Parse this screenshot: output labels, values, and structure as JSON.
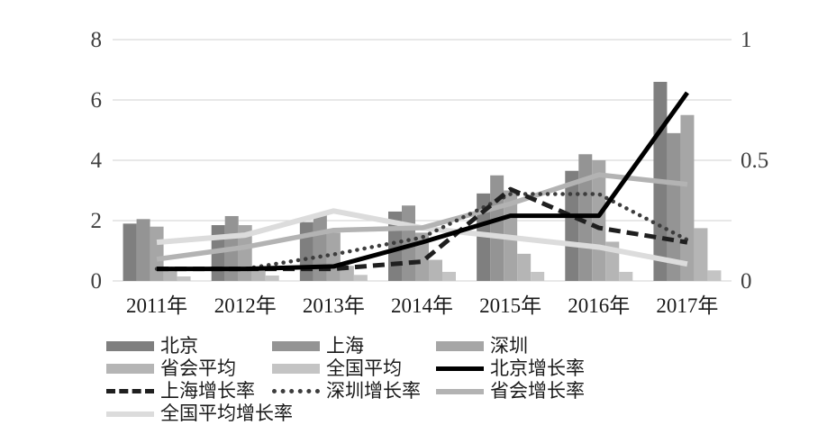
{
  "chart_data": {
    "type": "bar+line",
    "title": "",
    "categories": [
      "2011年",
      "2012年",
      "2013年",
      "2014年",
      "2015年",
      "2016年",
      "2017年"
    ],
    "bar_series": [
      {
        "name": "北京",
        "axis": "left",
        "color": "#7f7f7f",
        "values": [
          1.9,
          1.85,
          1.95,
          2.3,
          2.9,
          3.65,
          6.6
        ]
      },
      {
        "name": "上海",
        "axis": "left",
        "color": "#949494",
        "values": [
          2.05,
          2.15,
          2.2,
          2.5,
          3.5,
          4.2,
          4.9
        ]
      },
      {
        "name": "深圳",
        "axis": "left",
        "color": "#a6a6a6",
        "values": [
          1.8,
          1.85,
          1.6,
          1.6,
          3.0,
          4.0,
          5.5
        ]
      },
      {
        "name": "省会平均",
        "axis": "left",
        "color": "#b5b5b5",
        "values": [
          0.4,
          0.45,
          0.5,
          0.7,
          0.9,
          1.3,
          1.75
        ]
      },
      {
        "name": "全国平均",
        "axis": "left",
        "color": "#c4c4c4",
        "values": [
          0.15,
          0.18,
          0.2,
          0.3,
          0.3,
          0.3,
          0.35
        ]
      }
    ],
    "line_series": [
      {
        "name": "全国平均增长率",
        "axis": "right",
        "color": "#dcdcdc",
        "style": "solid",
        "values": [
          0.16,
          0.19,
          0.29,
          0.22,
          0.18,
          0.14,
          0.07
        ]
      },
      {
        "name": "省会增长率",
        "axis": "right",
        "color": "#b3b3b3",
        "style": "solid",
        "values": [
          0.09,
          0.14,
          0.21,
          0.22,
          0.32,
          0.44,
          0.4
        ]
      },
      {
        "name": "深圳增长率",
        "axis": "right",
        "color": "#3d3d3d",
        "style": "dotted",
        "values": [
          0.05,
          0.05,
          0.11,
          0.18,
          0.36,
          0.36,
          0.17
        ]
      },
      {
        "name": "上海增长率",
        "axis": "right",
        "color": "#1f1f1f",
        "style": "dashed",
        "values": [
          0.05,
          0.05,
          0.05,
          0.08,
          0.38,
          0.22,
          0.16
        ]
      },
      {
        "name": "北京增长率",
        "axis": "right",
        "color": "#000000",
        "style": "solid",
        "values": [
          0.05,
          0.05,
          0.06,
          0.16,
          0.27,
          0.27,
          0.78
        ]
      }
    ],
    "axis_left": {
      "ticks": [
        0,
        2,
        4,
        6,
        8
      ],
      "tick_labels": [
        "0",
        "2",
        "4",
        "6",
        "8"
      ],
      "max": 8
    },
    "axis_right": {
      "ticks": [
        0,
        0.5,
        1
      ],
      "tick_labels": [
        "0",
        "0.5",
        "1"
      ],
      "max": 1
    },
    "grid": true,
    "legend_position": "bottom"
  },
  "legend": {
    "items": [
      {
        "label": "北京",
        "marker": "bar",
        "color": "#7f7f7f"
      },
      {
        "label": "上海",
        "marker": "bar",
        "color": "#949494"
      },
      {
        "label": "深圳",
        "marker": "bar",
        "color": "#a6a6a6"
      },
      {
        "label": "省会平均",
        "marker": "bar",
        "color": "#b5b5b5"
      },
      {
        "label": "全国平均",
        "marker": "bar",
        "color": "#c4c4c4"
      },
      {
        "label": "北京增长率",
        "marker": "line-solid",
        "color": "#000000"
      },
      {
        "label": "上海增长率",
        "marker": "line-dashed",
        "color": "#1f1f1f"
      },
      {
        "label": "深圳增长率",
        "marker": "line-dotted",
        "color": "#3d3d3d"
      },
      {
        "label": "省会增长率",
        "marker": "line-solid",
        "color": "#b3b3b3"
      },
      {
        "label": "全国平均增长率",
        "marker": "line-solid",
        "color": "#dcdcdc"
      }
    ]
  },
  "colors": {
    "background": "#ffffff",
    "grid": "#d9d9d9",
    "axis_text": "#404040",
    "category_text": "#1a1a1a"
  }
}
